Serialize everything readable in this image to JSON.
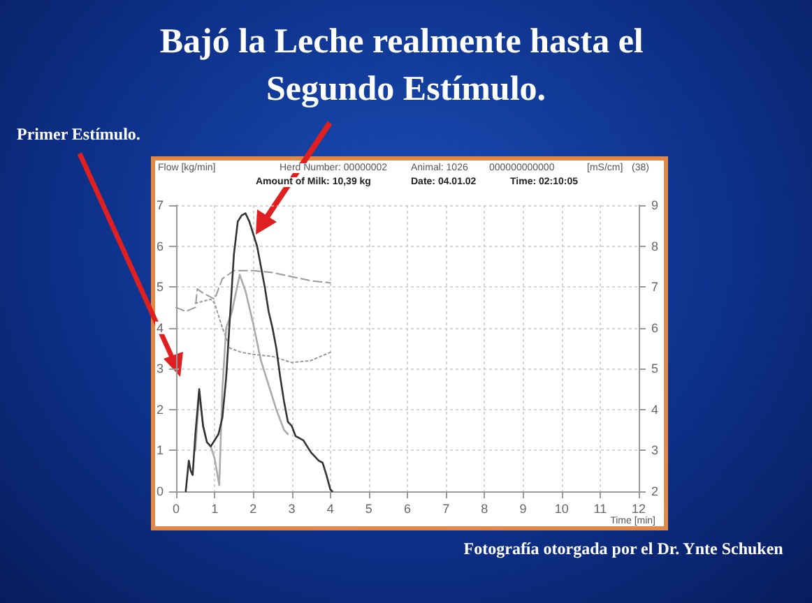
{
  "chart_data": {
    "type": "line",
    "title": "Bajó la Leche realmente hasta el Segundo Estímulo.",
    "xlabel": "Time [min]",
    "ylabel": "Flow [kg/min]",
    "y2label": "[mS/cm]",
    "annotations": [
      "Primer Estímulo.",
      "Herd Number: 00000002",
      "Animal: 1026",
      "000000000000",
      "(38)",
      "Amount of Milk: 10,39 kg",
      "Date: 04.01.02",
      "Time: 02:10:05",
      "Fotografía otorgada por el Dr. Ynte Schuken"
    ],
    "xlim": [
      0,
      12
    ],
    "xticks": [
      0,
      1,
      2,
      3,
      4,
      5,
      6,
      7,
      8,
      9,
      10,
      11,
      12
    ],
    "ylim": [
      0,
      7
    ],
    "yticks": [
      0,
      1,
      2,
      3,
      4,
      5,
      6,
      7
    ],
    "y2lim": [
      2,
      9
    ],
    "y2ticks": [
      2,
      3,
      4,
      5,
      6,
      7,
      8,
      9
    ],
    "grid": true,
    "marker": "none",
    "series": [
      {
        "color": "#aaaaaa",
        "line_style": "solid",
        "x": [
          0.5,
          0.6,
          0.7,
          0.8,
          0.9,
          1.0,
          1.12,
          1.2,
          1.3,
          1.45,
          1.65,
          1.8,
          2.0,
          2.2,
          2.4,
          2.6,
          2.8,
          2.9
        ],
        "values": [
          1.0,
          2.4,
          1.6,
          1.2,
          1.1,
          0.8,
          0.15,
          2.5,
          4.0,
          4.4,
          5.3,
          4.9,
          4.1,
          3.2,
          2.6,
          2.0,
          1.5,
          1.4
        ]
      },
      {
        "color": "#999999",
        "line_style": "dashed",
        "axis": "y2",
        "x": [
          0.0,
          0.25,
          0.5,
          0.55,
          0.7,
          1.0,
          1.2,
          1.5,
          2.0,
          2.5,
          3.0,
          3.5,
          4.0
        ],
        "values": [
          6.5,
          6.4,
          6.5,
          6.95,
          6.85,
          6.7,
          7.2,
          7.4,
          7.4,
          7.35,
          7.25,
          7.15,
          7.1
        ]
      },
      {
        "color": "#999999",
        "line_style": "dotted",
        "axis": "y2",
        "x": [
          0.5,
          0.9,
          1.0,
          1.2,
          1.4,
          1.7,
          2.0,
          2.5,
          3.0,
          3.5,
          4.0
        ],
        "values": [
          6.6,
          6.7,
          6.6,
          6.0,
          5.5,
          5.4,
          5.35,
          5.3,
          5.15,
          5.2,
          5.4
        ]
      },
      {
        "color": "#333333",
        "line_style": "solid",
        "x": [
          0.25,
          0.33,
          0.38,
          0.43,
          0.5,
          0.6,
          0.7,
          0.8,
          0.9,
          1.0,
          1.1,
          1.2,
          1.3,
          1.4,
          1.5,
          1.6,
          1.7,
          1.8,
          1.9,
          2.0,
          2.1,
          2.2,
          2.3,
          2.4,
          2.5,
          2.6,
          2.7,
          2.8,
          2.9,
          3.0,
          3.1,
          3.2,
          3.3,
          3.4,
          3.5,
          3.6,
          3.7,
          3.8,
          3.9,
          4.0,
          4.05
        ],
        "values": [
          0,
          0.75,
          0.5,
          0.4,
          1.4,
          2.5,
          1.6,
          1.2,
          1.1,
          1.25,
          1.4,
          1.8,
          2.8,
          4.3,
          5.8,
          6.6,
          6.75,
          6.8,
          6.6,
          6.3,
          6.0,
          5.5,
          5.0,
          4.4,
          4.0,
          3.5,
          2.8,
          2.2,
          1.7,
          1.6,
          1.35,
          1.3,
          1.25,
          1.1,
          0.95,
          0.85,
          0.75,
          0.7,
          0.4,
          0.05,
          0
        ]
      }
    ]
  }
}
